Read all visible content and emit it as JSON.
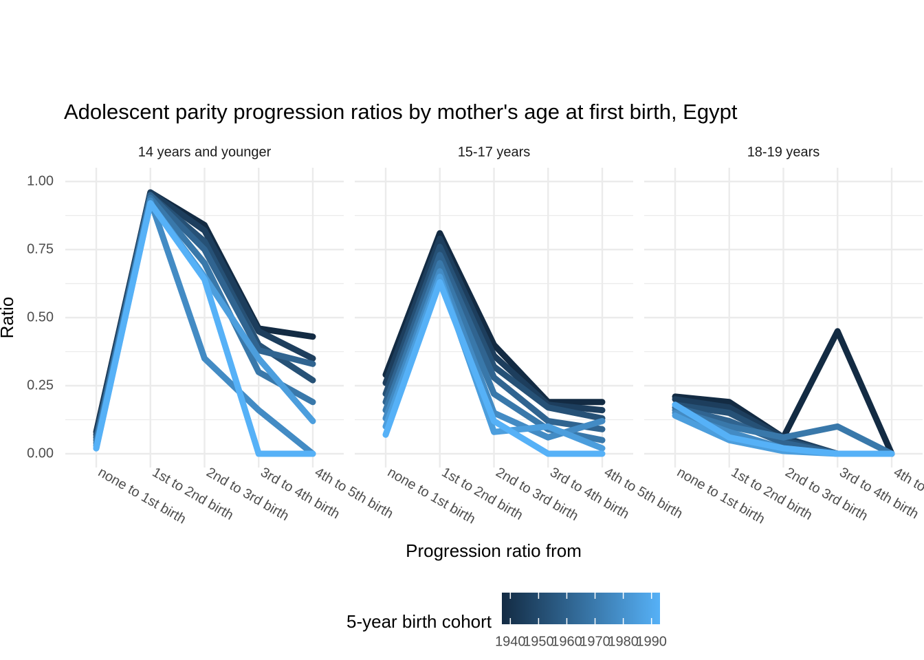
{
  "chart_data": {
    "type": "line",
    "title": "Adolescent parity progression ratios by mother's age at first birth,  Egypt",
    "x_label": "Progression ratio from",
    "y_label": "Ratio",
    "categories": [
      "none to 1st birth",
      "1st to 2nd birth",
      "2nd to 3rd birth",
      "3rd to 4th birth",
      "4th to 5th birth"
    ],
    "ylim": [
      0,
      1
    ],
    "grid": true,
    "yticks": [
      {
        "value": 0,
        "label": "0.00"
      },
      {
        "value": 0.25,
        "label": "0.25"
      },
      {
        "value": 0.5,
        "label": "0.50"
      },
      {
        "value": 0.75,
        "label": "0.75"
      },
      {
        "value": 1,
        "label": "1.00"
      }
    ],
    "legend": {
      "title": "5-year birth cohort",
      "colors": [
        "#132B43",
        "#56B1F7"
      ],
      "lim": [
        1937,
        1993
      ],
      "ticks": [
        1940,
        1950,
        1960,
        1970,
        1980,
        1990
      ]
    },
    "facets": [
      {
        "title": "14 years and younger",
        "series": [
          {
            "color": "#132B43",
            "values": [
              0.08,
              0.96,
              0.84,
              0.46,
              0.43
            ]
          },
          {
            "color": "#1D3E5D",
            "values": [
              0.07,
              0.96,
              0.82,
              0.45,
              0.35
            ]
          },
          {
            "color": "#265176",
            "values": [
              0.06,
              0.95,
              0.78,
              0.4,
              0.27
            ]
          },
          {
            "color": "#306490",
            "values": [
              0.05,
              0.95,
              0.75,
              0.38,
              0.33
            ]
          },
          {
            "color": "#3978AA",
            "values": [
              0.04,
              0.94,
              0.7,
              0.3,
              0.19
            ]
          },
          {
            "color": "#438BC4",
            "values": [
              0.03,
              0.93,
              0.35,
              0.16,
              0
            ]
          },
          {
            "color": "#4C9EDD",
            "values": [
              0.02,
              0.92,
              0.65,
              0.35,
              0.12
            ]
          },
          {
            "color": "#56B1F7",
            "values": [
              0.02,
              0.92,
              0.64,
              0,
              0
            ]
          }
        ]
      },
      {
        "title": "15-17 years",
        "series": [
          {
            "color": "#132B43",
            "values": [
              0.29,
              0.81,
              0.4,
              0.19,
              0.19
            ]
          },
          {
            "color": "#1D3E5D",
            "values": [
              0.26,
              0.79,
              0.36,
              0.18,
              0.16
            ]
          },
          {
            "color": "#265176",
            "values": [
              0.22,
              0.76,
              0.32,
              0.17,
              0.13
            ]
          },
          {
            "color": "#306490",
            "values": [
              0.19,
              0.73,
              0.28,
              0.12,
              0.09
            ]
          },
          {
            "color": "#3978AA",
            "values": [
              0.16,
              0.7,
              0.22,
              0.09,
              0.05
            ]
          },
          {
            "color": "#438BC4",
            "values": [
              0.13,
              0.67,
              0.15,
              0.06,
              0.12
            ]
          },
          {
            "color": "#4C9EDD",
            "values": [
              0.1,
              0.65,
              0.08,
              0.1,
              0.02
            ]
          },
          {
            "color": "#56B1F7",
            "values": [
              0.07,
              0.63,
              0.12,
              0,
              0
            ]
          }
        ]
      },
      {
        "title": "18-19 years",
        "series": [
          {
            "color": "#132B43",
            "values": [
              0.21,
              0.19,
              0.06,
              0.45,
              0
            ]
          },
          {
            "color": "#1D3E5D",
            "values": [
              0.2,
              0.17,
              0.06,
              0,
              0
            ]
          },
          {
            "color": "#265176",
            "values": [
              0.18,
              0.15,
              0.05,
              0,
              0
            ]
          },
          {
            "color": "#306490",
            "values": [
              0.17,
              0.12,
              0.04,
              0,
              0
            ]
          },
          {
            "color": "#3978AA",
            "values": [
              0.16,
              0.1,
              0.06,
              0.1,
              0
            ]
          },
          {
            "color": "#438BC4",
            "values": [
              0.15,
              0.08,
              0.02,
              0,
              0
            ]
          },
          {
            "color": "#4C9EDD",
            "values": [
              0.14,
              0.05,
              0.01,
              0,
              0
            ]
          },
          {
            "color": "#56B1F7",
            "values": [
              0.18,
              0.06,
              0.02,
              0,
              0
            ]
          }
        ]
      }
    ]
  }
}
